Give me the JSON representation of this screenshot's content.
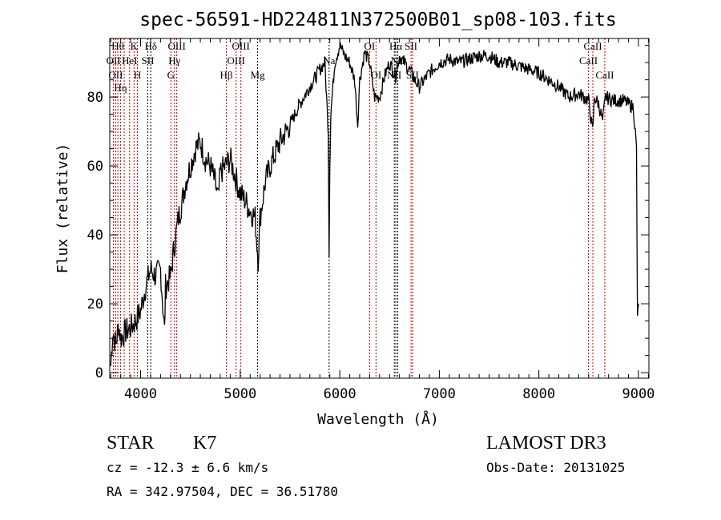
{
  "chart_data": {
    "type": "line",
    "title": "spec-56591-HD224811N372500B01_sp08-103.fits",
    "xlabel": "Wavelength (Å)",
    "ylabel": "Flux (relative)",
    "xlim": [
      3690,
      9105
    ],
    "ylim": [
      -1.6,
      97
    ],
    "xticks": [
      4000,
      5000,
      6000,
      7000,
      8000,
      9000
    ],
    "yticks": [
      0,
      20,
      40,
      60,
      80
    ],
    "series": [
      {
        "name": "spectrum",
        "x": [
          3700,
          3720,
          3750,
          3780,
          3800,
          3850,
          3900,
          3950,
          4000,
          4050,
          4100,
          4150,
          4200,
          4240,
          4250,
          4300,
          4330,
          4380,
          4420,
          4450,
          4500,
          4550,
          4600,
          4650,
          4700,
          4750,
          4780,
          4800,
          4850,
          4900,
          4950,
          5000,
          5050,
          5100,
          5150,
          5180,
          5200,
          5250,
          5300,
          5400,
          5500,
          5600,
          5700,
          5800,
          5850,
          5885,
          5893,
          5900,
          5910,
          5950,
          6000,
          6050,
          6100,
          6150,
          6180,
          6200,
          6250,
          6300,
          6350,
          6400,
          6450,
          6500,
          6560,
          6600,
          6650,
          6700,
          6750,
          6800,
          6900,
          7000,
          7100,
          7200,
          7300,
          7400,
          7500,
          7600,
          7700,
          7800,
          7900,
          8000,
          8100,
          8200,
          8300,
          8400,
          8500,
          8540,
          8560,
          8600,
          8640,
          8670,
          8750,
          8850,
          8950,
          8980,
          8990,
          9000
        ],
        "y": [
          2,
          12,
          8,
          14,
          10,
          12,
          13,
          15,
          18,
          25,
          30,
          28,
          30,
          12,
          25,
          28,
          35,
          45,
          50,
          55,
          60,
          65,
          67,
          62,
          60,
          55,
          50,
          58,
          60,
          62,
          57,
          52,
          50,
          47,
          45,
          33,
          45,
          55,
          60,
          67,
          72,
          78,
          83,
          88,
          90,
          70,
          35,
          60,
          75,
          90,
          95,
          92,
          90,
          85,
          72,
          85,
          93,
          90,
          80,
          80,
          86,
          90,
          86,
          92,
          90,
          88,
          85,
          83,
          87,
          90,
          91,
          90,
          91,
          92,
          92,
          90,
          90,
          89,
          88,
          87,
          85,
          83,
          80,
          81,
          79,
          70,
          80,
          78,
          73,
          80,
          79,
          79,
          77,
          65,
          15,
          20
        ]
      }
    ],
    "lines": [
      {
        "w": 3727,
        "label": "OII",
        "row": 2,
        "color": "red"
      },
      {
        "w": 3750,
        "label": "OII",
        "row": 3,
        "color": "red"
      },
      {
        "w": 3771,
        "label": "Hθ",
        "row": 1,
        "color": "red"
      },
      {
        "w": 3798,
        "label": "Hη",
        "row": 3,
        "color": "red"
      },
      {
        "w": 3835,
        "label": "",
        "row": 0,
        "color": "red"
      },
      {
        "w": 3889,
        "label": "HeI",
        "row": 2,
        "color": "red"
      },
      {
        "w": 3934,
        "label": "K",
        "row": 1,
        "color": "red"
      },
      {
        "w": 3968,
        "label": "H",
        "row": 3,
        "color": "red"
      },
      {
        "w": 4072,
        "label": "SII",
        "row": 2,
        "color": "black"
      },
      {
        "w": 4102,
        "label": "Hδ",
        "row": 1,
        "color": "black"
      },
      {
        "w": 4304,
        "label": "G",
        "row": 3,
        "color": "red"
      },
      {
        "w": 4340,
        "label": "Hγ",
        "row": 2,
        "color": "red"
      },
      {
        "w": 4363,
        "label": "OIII",
        "row": 1,
        "color": "red"
      },
      {
        "w": 4861,
        "label": "Hβ",
        "row": 3,
        "color": "red"
      },
      {
        "w": 4959,
        "label": "OIII",
        "row": 2,
        "color": "red"
      },
      {
        "w": 5007,
        "label": "OIII",
        "row": 1,
        "color": "red"
      },
      {
        "w": 5175,
        "label": "Mg",
        "row": 3,
        "color": "black"
      },
      {
        "w": 5893,
        "label": "Na",
        "row": 2,
        "color": "black"
      },
      {
        "w": 6300,
        "label": "OI",
        "row": 1,
        "color": "red"
      },
      {
        "w": 6364,
        "label": "OI",
        "row": 3,
        "color": "red"
      },
      {
        "w": 6548,
        "label": "NII",
        "row": 3,
        "color": "black"
      },
      {
        "w": 6563,
        "label": "Hα",
        "row": 1,
        "color": "black"
      },
      {
        "w": 6583,
        "label": "NII",
        "row": 2,
        "color": "black"
      },
      {
        "w": 6716,
        "label": "SII",
        "row": 1,
        "color": "red"
      },
      {
        "w": 6731,
        "label": "SII",
        "row": 3,
        "color": "red"
      },
      {
        "w": 8498,
        "label": "CaII",
        "row": 2,
        "color": "red"
      },
      {
        "w": 8542,
        "label": "CaII",
        "row": 1,
        "color": "red"
      },
      {
        "w": 8662,
        "label": "CaII",
        "row": 3,
        "color": "red"
      }
    ]
  },
  "info": {
    "class": "STAR",
    "subclass": "K7",
    "cz": "cz = -12.3 ± 6.6 km/s",
    "radec": "RA = 342.97504, DEC =  36.51780",
    "survey": "LAMOST DR3",
    "obsdate": "Obs-Date: 20131025"
  }
}
